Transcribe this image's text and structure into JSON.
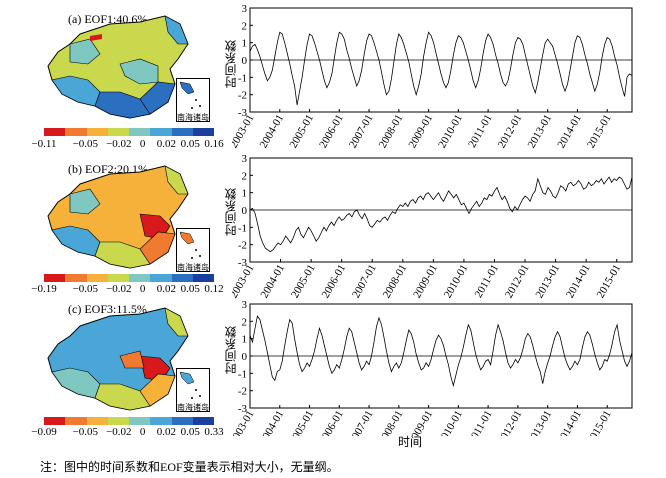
{
  "colors": {
    "scale": [
      "#d7191c",
      "#f07a2f",
      "#f5b13a",
      "#c9d84d",
      "#7fc8c1",
      "#4aa6d6",
      "#2b6fc0",
      "#1b3f9c"
    ]
  },
  "panels": [
    {
      "label": "(a)  EOF1:40.6%",
      "colorbar_ticks": [
        "−0.11",
        "−0.05",
        "−0.02",
        "0",
        "0.02",
        "0.05",
        "0.16"
      ],
      "inset_label": "南海诸岛"
    },
    {
      "label": "(b)  EOF2:20.1%",
      "colorbar_ticks": [
        "−0.19",
        "−0.05",
        "−0.02",
        "0",
        "0.02",
        "0.05",
        "0.12"
      ],
      "inset_label": "南海诸岛"
    },
    {
      "label": "(c)  EOF3:11.5%",
      "colorbar_ticks": [
        "−0.09",
        "−0.05",
        "−0.02",
        "0",
        "0.02",
        "0.05",
        "0.33"
      ],
      "inset_label": "南海诸岛"
    }
  ],
  "chart_data": [
    {
      "type": "line",
      "ylabel": "时间系数",
      "xlabel": "",
      "ylim": [
        -3,
        3
      ],
      "yticks": [
        -3,
        -2,
        -1,
        0,
        1,
        2,
        3
      ],
      "x_ticks": [
        "2003-01",
        "2004-01",
        "2005-01",
        "2006-01",
        "2007-01",
        "2008-01",
        "2009-01",
        "2010-01",
        "2011-01",
        "2012-01",
        "2013-01",
        "2014-01",
        "2015-01"
      ],
      "x_start": "2003-01",
      "series": [
        {
          "values": [
            0.5,
            0.8,
            0.9,
            0.6,
            0.2,
            -0.3,
            -0.8,
            -1.2,
            -1.0,
            -0.6,
            0.2,
            1.0,
            1.6,
            1.5,
            1.0,
            0.4,
            -0.2,
            -0.9,
            -1.5,
            -2.6,
            -1.8,
            -1.0,
            0.0,
            0.9,
            1.5,
            1.4,
            1.0,
            0.5,
            0.0,
            -0.6,
            -1.2,
            -1.6,
            -1.3,
            -0.8,
            0.1,
            1.0,
            1.6,
            1.5,
            1.2,
            0.6,
            0.1,
            -0.5,
            -1.0,
            -1.5,
            -1.2,
            -0.6,
            0.3,
            1.1,
            1.5,
            1.4,
            1.0,
            0.5,
            0.0,
            -0.7,
            -1.4,
            -2.0,
            -1.8,
            -1.1,
            -0.1,
            0.9,
            1.5,
            1.3,
            0.9,
            0.4,
            -0.1,
            -0.8,
            -1.5,
            -2.0,
            -1.5,
            -0.8,
            0.2,
            1.0,
            1.6,
            1.4,
            1.0,
            0.4,
            -0.2,
            -0.8,
            -1.3,
            -1.6,
            -1.3,
            -0.6,
            0.3,
            1.0,
            1.4,
            1.3,
            1.0,
            0.5,
            0.0,
            -0.6,
            -1.2,
            -1.6,
            -1.2,
            -0.5,
            0.4,
            1.1,
            1.5,
            1.3,
            0.9,
            0.3,
            -0.2,
            -0.8,
            -1.3,
            -1.5,
            -1.2,
            -0.5,
            0.3,
            1.0,
            1.3,
            1.2,
            0.9,
            0.3,
            -0.3,
            -0.9,
            -1.5,
            -1.9,
            -1.3,
            -0.5,
            0.3,
            1.0,
            1.2,
            1.0,
            0.8,
            0.3,
            -0.2,
            -0.8,
            -1.4,
            -1.8,
            -1.4,
            -0.6,
            0.2,
            1.0,
            1.4,
            1.3,
            0.9,
            0.3,
            -0.2,
            -0.8,
            -1.3,
            -1.8,
            -1.4,
            -0.7,
            0.2,
            0.9,
            1.3,
            1.2,
            0.8,
            0.2,
            -0.3,
            -1.0,
            -1.6,
            -2.1,
            -1.0,
            -0.8,
            -0.9
          ]
        }
      ]
    },
    {
      "type": "line",
      "ylabel": "时间系数",
      "xlabel": "",
      "ylim": [
        -3,
        3
      ],
      "yticks": [
        -3,
        -2,
        -1,
        0,
        1,
        2,
        3
      ],
      "x_ticks": [
        "2003-01",
        "2004-01",
        "2005-01",
        "2006-01",
        "2007-01",
        "2008-01",
        "2009-01",
        "2010-01",
        "2011-01",
        "2012-01",
        "2013-01",
        "2014-01",
        "2015-01"
      ],
      "x_start": "2003-01",
      "series": [
        {
          "values": [
            0.0,
            0.1,
            -0.2,
            -0.8,
            -1.5,
            -1.9,
            -2.2,
            -2.3,
            -2.4,
            -2.3,
            -2.1,
            -1.9,
            -2.0,
            -1.8,
            -1.5,
            -1.7,
            -1.9,
            -1.6,
            -1.2,
            -1.0,
            -1.4,
            -1.6,
            -1.3,
            -1.0,
            -1.2,
            -1.5,
            -1.8,
            -1.6,
            -1.3,
            -1.0,
            -1.2,
            -0.9,
            -0.7,
            -0.9,
            -0.6,
            -0.4,
            -0.6,
            -0.5,
            -0.3,
            -0.2,
            -0.4,
            -0.1,
            0.0,
            -0.3,
            -0.5,
            -0.2,
            -0.5,
            -0.9,
            -1.0,
            -0.8,
            -0.6,
            -0.7,
            -0.5,
            -0.4,
            -0.6,
            -0.3,
            -0.1,
            -0.2,
            0.1,
            0.3,
            0.2,
            0.4,
            0.2,
            0.5,
            0.6,
            0.4,
            0.7,
            0.8,
            0.6,
            0.9,
            1.0,
            0.8,
            0.6,
            0.8,
            1.0,
            0.7,
            0.5,
            0.8,
            1.1,
            0.9,
            0.7,
            0.9,
            0.6,
            0.3,
            0.4,
            0.1,
            -0.2,
            0.1,
            0.3,
            0.5,
            0.2,
            0.4,
            0.7,
            0.6,
            0.9,
            0.8,
            1.1,
            1.3,
            0.9,
            0.6,
            0.8,
            0.5,
            0.1,
            -0.1,
            0.2,
            0.0,
            0.3,
            0.6,
            0.8,
            0.7,
            0.5,
            0.9,
            1.1,
            1.8,
            1.4,
            1.0,
            0.9,
            1.3,
            1.1,
            0.8,
            0.7,
            1.0,
            1.4,
            1.3,
            1.1,
            1.5,
            1.6,
            1.4,
            1.5,
            1.7,
            1.5,
            1.2,
            1.3,
            1.6,
            1.4,
            1.5,
            1.7,
            1.6,
            1.8,
            1.5,
            1.7,
            1.9,
            1.6,
            1.8,
            1.7,
            1.9,
            1.8,
            1.5,
            1.2,
            1.3,
            1.9
          ]
        }
      ]
    },
    {
      "type": "line",
      "ylabel": "时间系数",
      "xlabel": "时间",
      "ylim": [
        -3,
        3
      ],
      "yticks": [
        -3,
        -2,
        -1,
        0,
        1,
        2,
        3
      ],
      "x_ticks": [
        "2003-01",
        "2004-01",
        "2005-01",
        "2006-01",
        "2007-01",
        "2008-01",
        "2009-01",
        "2010-01",
        "2011-01",
        "2012-01",
        "2013-01",
        "2014-01",
        "2015-01"
      ],
      "x_start": "2003-01",
      "series": [
        {
          "values": [
            1.2,
            0.8,
            1.6,
            2.3,
            2.1,
            1.5,
            0.9,
            0.2,
            -0.5,
            -1.2,
            -1.4,
            -0.9,
            -0.8,
            -0.3,
            0.6,
            1.4,
            2.1,
            1.9,
            1.0,
            0.2,
            -0.5,
            -0.9,
            -0.7,
            -0.4,
            -0.6,
            -0.2,
            0.3,
            1.0,
            1.6,
            1.2,
            0.6,
            0.0,
            -0.6,
            -1.0,
            -0.8,
            -0.5,
            -0.7,
            -0.2,
            0.4,
            1.1,
            1.6,
            1.4,
            0.8,
            0.2,
            -0.4,
            -0.8,
            -0.6,
            -0.3,
            -0.5,
            0.0,
            0.8,
            1.7,
            2.2,
            1.8,
            1.1,
            0.3,
            -0.4,
            -0.9,
            -0.6,
            -0.4,
            -0.7,
            -0.4,
            0.2,
            0.9,
            1.5,
            1.3,
            0.8,
            0.1,
            -0.4,
            -0.8,
            -0.7,
            -0.4,
            -0.6,
            -0.2,
            0.4,
            0.9,
            1.2,
            1.0,
            0.6,
            0.0,
            -0.5,
            -1.2,
            -1.7,
            -1.1,
            -0.5,
            -0.1,
            0.5,
            1.2,
            1.8,
            1.5,
            0.8,
            0.1,
            -0.4,
            -0.8,
            -0.6,
            -0.3,
            -0.2,
            -0.5,
            0.3,
            1.2,
            1.8,
            1.4,
            0.9,
            0.2,
            -0.4,
            -0.7,
            -0.5,
            -0.2,
            -0.4,
            -0.1,
            0.4,
            1.0,
            1.3,
            1.1,
            0.6,
            0.0,
            -0.5,
            -0.9,
            -1.6,
            -0.9,
            -0.4,
            0.0,
            0.6,
            1.1,
            1.4,
            1.1,
            0.5,
            -0.1,
            -0.5,
            -0.8,
            -0.6,
            -0.3,
            -0.5,
            -0.2,
            0.5,
            1.1,
            1.4,
            1.2,
            0.7,
            0.1,
            -0.4,
            -0.8,
            -0.6,
            -0.2,
            -0.3,
            0.1,
            0.7,
            1.4,
            1.8,
            0.9,
            0.3,
            -0.3,
            -0.6,
            -0.3,
            0.2
          ]
        }
      ]
    }
  ],
  "note": "注：图中的时间系数和EOF变量表示相对大小，无量纲。"
}
